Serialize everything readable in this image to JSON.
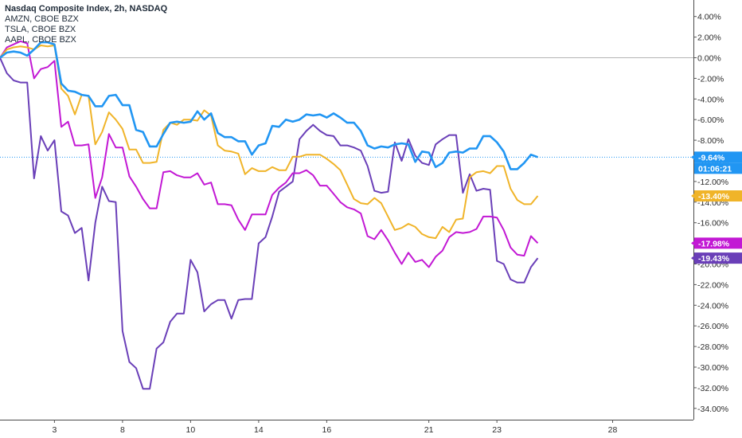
{
  "legend": {
    "main": "Nasdaq Composite Index, 2h, NASDAQ",
    "items": [
      "AMZN, CBOE BZX",
      "TSLA, CBOE BZX",
      "AAPL, CBOE BZX"
    ]
  },
  "countdown": "01:06:21",
  "chart_data": {
    "type": "line",
    "ylim": [
      -35.5,
      5
    ],
    "y_ticks": [
      4,
      2,
      0,
      -2,
      -4,
      -6,
      -8,
      -10,
      -12,
      -14,
      -16,
      -18,
      -20,
      -22,
      -24,
      -26,
      -28,
      -30,
      -32,
      -34
    ],
    "y_tick_labels": [
      "4.00%",
      "2.00%",
      "0.00%",
      "-2.00%",
      "-4.00%",
      "-6.00%",
      "-8.00%",
      "-10.00%",
      "-12.00%",
      "-14.00%",
      "-16.00%",
      "-18.00%",
      "-20.00%",
      "-22.00%",
      "-24.00%",
      "-26.00%",
      "-28.00%",
      "-30.00%",
      "-32.00%",
      "-34.00%"
    ],
    "x_ticks": [
      {
        "label": "3",
        "i": 8
      },
      {
        "label": "8",
        "i": 18
      },
      {
        "label": "10",
        "i": 28
      },
      {
        "label": "14",
        "i": 38
      },
      {
        "label": "16",
        "i": 48
      },
      {
        "label": "21",
        "i": 63
      },
      {
        "label": "23",
        "i": 73
      },
      {
        "label": "28",
        "i": 90
      }
    ],
    "x_domain": [
      0,
      101
    ],
    "series": [
      {
        "name": "Nasdaq Composite Index",
        "color": "#2196f3",
        "last_label": "-9.64%",
        "values": [
          0,
          0.5,
          0.6,
          0.5,
          0.2,
          0.8,
          1.5,
          1.5,
          1.3,
          -2.5,
          -3.2,
          -3.3,
          -3.6,
          -3.7,
          -4.7,
          -4.7,
          -3.7,
          -3.6,
          -4.6,
          -4.6,
          -7.0,
          -7.2,
          -8.6,
          -8.6,
          -7.4,
          -6.3,
          -6.2,
          -6.3,
          -6.2,
          -5.2,
          -6.0,
          -5.4,
          -7.3,
          -7.7,
          -7.7,
          -8.1,
          -8.1,
          -9.4,
          -8.5,
          -8.3,
          -6.6,
          -6.7,
          -6.0,
          -6.2,
          -6.0,
          -5.5,
          -5.6,
          -5.5,
          -5.8,
          -5.4,
          -5.8,
          -6.3,
          -6.3,
          -7.1,
          -8.5,
          -8.8,
          -8.6,
          -8.7,
          -8.4,
          -8.3,
          -8.4,
          -10.1,
          -9.1,
          -9.2,
          -10.6,
          -10.2,
          -9.2,
          -9.1,
          -9.2,
          -8.8,
          -8.8,
          -7.6,
          -7.6,
          -8.2,
          -9.1,
          -10.8,
          -10.8,
          -10.2,
          -9.4,
          -9.64
        ]
      },
      {
        "name": "AMZN",
        "color": "#f0b429",
        "last_label": "-13.40%",
        "values": [
          0,
          0.8,
          1.0,
          1.1,
          1.0,
          0.8,
          1.2,
          1.1,
          1.2,
          -3.0,
          -3.7,
          -5.5,
          -3.6,
          -3.7,
          -8.4,
          -7.2,
          -5.3,
          -6.0,
          -6.9,
          -8.9,
          -8.9,
          -10.2,
          -10.2,
          -10.1,
          -7.0,
          -6.3,
          -6.5,
          -6.0,
          -6.0,
          -6.1,
          -5.1,
          -5.6,
          -8.5,
          -9.0,
          -9.1,
          -9.3,
          -11.3,
          -10.7,
          -11.0,
          -11.0,
          -10.6,
          -10.9,
          -10.9,
          -9.6,
          -9.6,
          -9.4,
          -9.4,
          -9.4,
          -9.8,
          -10.3,
          -10.9,
          -12.3,
          -13.7,
          -14.1,
          -14.2,
          -13.6,
          -14.1,
          -15.4,
          -16.7,
          -16.5,
          -16.1,
          -16.4,
          -17.1,
          -17.4,
          -17.5,
          -16.4,
          -16.9,
          -15.7,
          -15.6,
          -11.6,
          -11.1,
          -11.0,
          -11.2,
          -10.5,
          -10.5,
          -12.7,
          -13.8,
          -14.2,
          -14.2,
          -13.4
        ]
      },
      {
        "name": "TSLA",
        "color": "#c218d4",
        "last_label": "-17.98%",
        "values": [
          0,
          1.0,
          1.3,
          1.6,
          1.4,
          -2.0,
          -1.1,
          -0.9,
          -0.3,
          -6.7,
          -6.2,
          -8.5,
          -8.5,
          -8.4,
          -13.6,
          -11.6,
          -7.4,
          -8.7,
          -8.7,
          -11.5,
          -12.5,
          -13.7,
          -14.6,
          -14.6,
          -11.1,
          -11.0,
          -11.4,
          -11.6,
          -11.6,
          -11.2,
          -12.3,
          -12.1,
          -14.2,
          -14.2,
          -14.3,
          -15.7,
          -16.7,
          -15.2,
          -15.2,
          -15.2,
          -13.3,
          -12.6,
          -12.1,
          -11.2,
          -11.2,
          -10.9,
          -11.4,
          -12.4,
          -12.4,
          -13.2,
          -14.0,
          -14.5,
          -14.7,
          -15.1,
          -17.3,
          -17.6,
          -16.7,
          -17.7,
          -18.9,
          -20.0,
          -18.9,
          -19.8,
          -19.6,
          -20.3,
          -19.3,
          -18.7,
          -17.4,
          -16.9,
          -17.0,
          -16.9,
          -16.6,
          -15.4,
          -15.4,
          -15.5,
          -16.7,
          -18.4,
          -19.1,
          -19.2,
          -17.3,
          -17.98
        ]
      },
      {
        "name": "AAPL",
        "color": "#6a3fb8",
        "last_label": "-19.43%",
        "values": [
          0,
          -1.5,
          -2.2,
          -2.4,
          -2.4,
          -11.7,
          -7.6,
          -9.0,
          -8.0,
          -14.9,
          -15.3,
          -17.0,
          -16.5,
          -21.6,
          -16.0,
          -12.5,
          -13.9,
          -14.0,
          -26.5,
          -29.5,
          -30.1,
          -32.1,
          -32.1,
          -28.2,
          -27.6,
          -25.6,
          -24.8,
          -24.8,
          -19.6,
          -20.8,
          -24.6,
          -23.9,
          -23.5,
          -23.5,
          -25.3,
          -23.5,
          -23.4,
          -23.4,
          -18.0,
          -17.4,
          -15.4,
          -13.0,
          -12.5,
          -12.0,
          -7.9,
          -7.1,
          -6.5,
          -7.1,
          -7.5,
          -7.6,
          -8.5,
          -8.5,
          -8.7,
          -9.0,
          -10.5,
          -12.9,
          -13.1,
          -13.0,
          -8.2,
          -10.0,
          -7.9,
          -9.5,
          -10.2,
          -10.4,
          -8.4,
          -7.9,
          -7.5,
          -7.5,
          -13.1,
          -11.3,
          -12.9,
          -12.7,
          -12.8,
          -19.7,
          -20.0,
          -21.5,
          -21.8,
          -21.8,
          -20.3,
          -19.43
        ]
      }
    ]
  }
}
